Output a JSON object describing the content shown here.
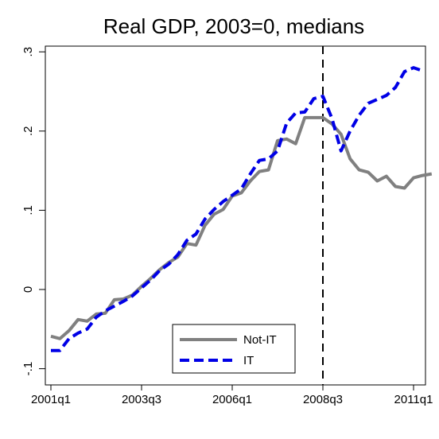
{
  "chart_data": {
    "type": "line",
    "title": "Real GDP, 2003=0, medians",
    "xlabel": "",
    "ylabel": "",
    "x_tick_labels": [
      "2001q1",
      "2003q3",
      "2006q1",
      "2008q3",
      "2011q1"
    ],
    "x_tick_positions": [
      0,
      10,
      20,
      30,
      40
    ],
    "y_tick_labels": [
      "-.1",
      "0",
      ".1",
      ".2",
      ".3"
    ],
    "y_tick_values": [
      -0.1,
      0,
      0.1,
      0.2,
      0.3
    ],
    "xlim": [
      0,
      40
    ],
    "ylim": [
      -0.1,
      0.3
    ],
    "vline_x": 30,
    "vline_style": "dashed",
    "legend_placement": "bottom-center",
    "series": [
      {
        "name": "Not-IT",
        "color": "#808080",
        "dash": "solid",
        "values": [
          -0.059,
          -0.062,
          -0.052,
          -0.038,
          -0.04,
          -0.031,
          -0.03,
          -0.013,
          -0.012,
          -0.007,
          0.004,
          0.014,
          0.025,
          0.034,
          0.041,
          0.058,
          0.056,
          0.081,
          0.095,
          0.101,
          0.118,
          0.122,
          0.137,
          0.149,
          0.151,
          0.188,
          0.19,
          0.184,
          0.217,
          0.217,
          0.217,
          0.209,
          0.196,
          0.165,
          0.151,
          0.148,
          0.137,
          0.143,
          0.13,
          0.128,
          0.141,
          0.144,
          0.146
        ]
      },
      {
        "name": "IT",
        "color": "#0000e6",
        "dash": "dashed",
        "values": [
          -0.077,
          -0.077,
          -0.062,
          -0.055,
          -0.05,
          -0.035,
          -0.027,
          -0.021,
          -0.015,
          -0.008,
          0.002,
          0.012,
          0.024,
          0.032,
          0.044,
          0.062,
          0.07,
          0.089,
          0.101,
          0.111,
          0.119,
          0.127,
          0.146,
          0.163,
          0.165,
          0.175,
          0.21,
          0.223,
          0.224,
          0.241,
          0.244,
          0.216,
          0.175,
          0.2,
          0.22,
          0.235,
          0.24,
          0.245,
          0.255,
          0.275,
          0.28,
          0.276
        ]
      }
    ]
  }
}
